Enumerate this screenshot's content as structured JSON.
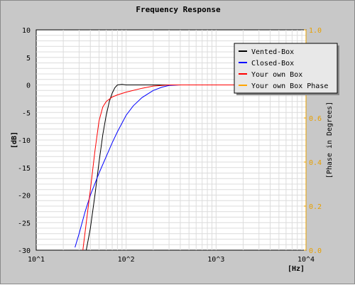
{
  "chart_data": {
    "type": "line",
    "title": "Frequency Response",
    "xlabel": "[Hz]",
    "ylabel": "[dB]",
    "y2label": "[Phase in Degrees]",
    "xscale": "log",
    "xlim": [
      10,
      10000
    ],
    "ylim": [
      -30,
      10
    ],
    "y2lim": [
      0,
      1
    ],
    "x_ticks": [
      "10^1",
      "10^2",
      "10^3",
      "10^4"
    ],
    "y_ticks": [
      "10",
      "5",
      "0",
      "-5",
      "-10",
      "-15",
      "-20",
      "-25",
      "-30"
    ],
    "y2_ticks": [
      "1.0",
      "0.8",
      "0.6",
      "0.4",
      "0.2",
      "0.0"
    ],
    "grid": true,
    "legend_position": "top-right",
    "colors": {
      "background": "#c8c8c8",
      "plot_background": "#ffffff",
      "grid": "#dcdcdc",
      "secondary_axis": "#e8a000"
    },
    "series": [
      {
        "name": "Vented-Box",
        "color": "#000000",
        "points": [
          [
            36,
            -30
          ],
          [
            40,
            -26
          ],
          [
            45,
            -20
          ],
          [
            50,
            -14
          ],
          [
            55,
            -9
          ],
          [
            60,
            -5.5
          ],
          [
            65,
            -3
          ],
          [
            70,
            -1.5
          ],
          [
            75,
            -0.5
          ],
          [
            80,
            0
          ],
          [
            90,
            0.1
          ],
          [
            100,
            0
          ],
          [
            150,
            0
          ],
          [
            300,
            0
          ],
          [
            1000,
            0
          ],
          [
            10000,
            0
          ]
        ]
      },
      {
        "name": "Closed-Box",
        "color": "#0000ff",
        "points": [
          [
            27,
            -29.5
          ],
          [
            30,
            -27
          ],
          [
            35,
            -23
          ],
          [
            40,
            -20
          ],
          [
            50,
            -16
          ],
          [
            60,
            -13
          ],
          [
            70,
            -10.5
          ],
          [
            80,
            -8.5
          ],
          [
            100,
            -5.5
          ],
          [
            120,
            -3.8
          ],
          [
            150,
            -2.3
          ],
          [
            200,
            -1
          ],
          [
            250,
            -0.4
          ],
          [
            300,
            -0.1
          ],
          [
            400,
            0
          ],
          [
            1000,
            0
          ],
          [
            10000,
            0
          ]
        ]
      },
      {
        "name": "Your own Box",
        "color": "#ff0000",
        "points": [
          [
            33,
            -30
          ],
          [
            36,
            -25
          ],
          [
            40,
            -19
          ],
          [
            45,
            -12
          ],
          [
            50,
            -6.5
          ],
          [
            55,
            -4
          ],
          [
            60,
            -3
          ],
          [
            70,
            -2.2
          ],
          [
            80,
            -1.8
          ],
          [
            100,
            -1.3
          ],
          [
            150,
            -0.6
          ],
          [
            200,
            -0.2
          ],
          [
            300,
            0
          ],
          [
            1000,
            0
          ],
          [
            10000,
            0
          ]
        ]
      },
      {
        "name": "Your own Box Phase",
        "color": "#ffa500",
        "points": []
      }
    ]
  }
}
